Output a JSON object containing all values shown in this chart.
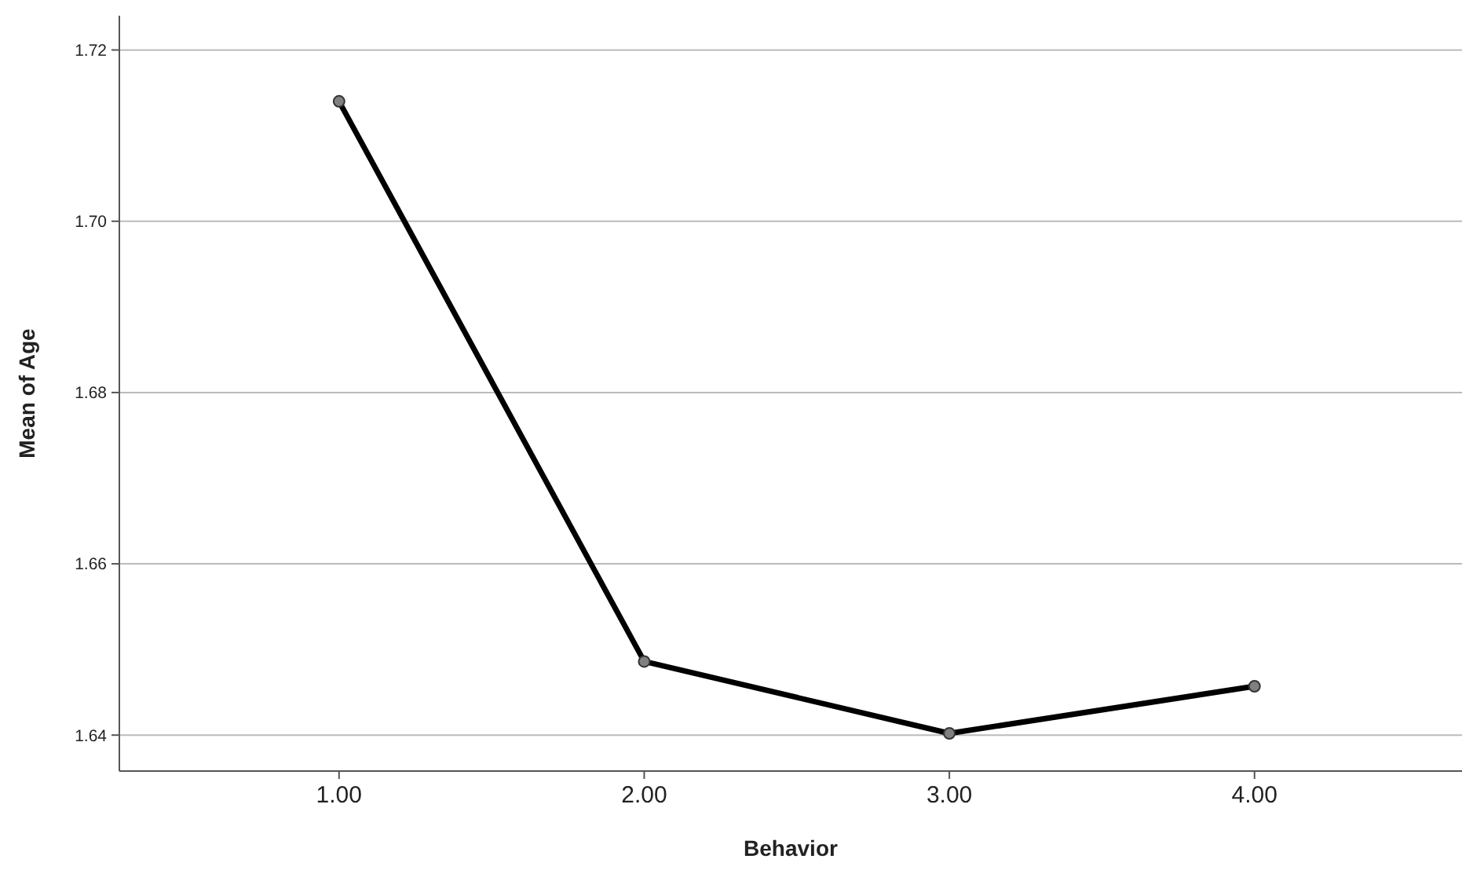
{
  "chart_data": {
    "type": "line",
    "xlabel": "Behavior",
    "ylabel": "Mean of Age",
    "categories": [
      "1.00",
      "2.00",
      "3.00",
      "4.00"
    ],
    "series": [
      {
        "color": "#000000",
        "values": [
          1.714,
          1.6486,
          1.6402,
          1.6457
        ]
      }
    ],
    "ylim": [
      1.6358,
      1.724
    ],
    "yticks": [
      1.64,
      1.66,
      1.68,
      {
        "value": 1.7,
        "label": "1.70"
      },
      1.72
    ],
    "grid": "y",
    "marker": "circle",
    "line_style": "solid"
  }
}
